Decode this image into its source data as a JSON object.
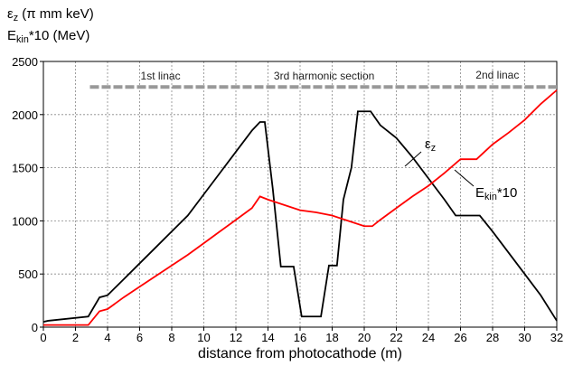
{
  "chart_data": {
    "type": "line",
    "y_label_lines": [
      [
        "ε",
        "z",
        " (π mm keV)"
      ],
      [
        "E",
        "kin",
        "*10 (MeV)"
      ]
    ],
    "x_label": "distance from photocathode (m)",
    "annotations": [
      "1st linac",
      "3rd harmonic section",
      "2nd linac"
    ],
    "xlim": [
      0,
      32
    ],
    "ylim": [
      0,
      2500
    ],
    "xticks": [
      0,
      2,
      4,
      6,
      8,
      10,
      12,
      14,
      16,
      18,
      20,
      22,
      24,
      26,
      28,
      30,
      32
    ],
    "yticks": [
      0,
      500,
      1000,
      1500,
      2000,
      2500
    ],
    "grid": true,
    "cavity_row": {
      "y": 2260,
      "x": [
        2.9,
        32
      ],
      "color": "#999999"
    },
    "series": [
      {
        "name_parts": [
          "ε",
          "z"
        ],
        "color": "#000000",
        "x": [
          0,
          0.3,
          2.8,
          3.5,
          4,
          5,
          6,
          7,
          8,
          9,
          10,
          11,
          12,
          13,
          13.5,
          13.8,
          14.3,
          14.8,
          15.6,
          16.1,
          17.3,
          17.8,
          18.3,
          18.7,
          19.2,
          19.6,
          20.4,
          21,
          22,
          23,
          24,
          25,
          25.7,
          27.2,
          28,
          29,
          30,
          31,
          32
        ],
        "values": [
          50,
          60,
          100,
          280,
          300,
          450,
          600,
          750,
          900,
          1050,
          1250,
          1450,
          1650,
          1850,
          1930,
          1930,
          1300,
          570,
          570,
          100,
          100,
          580,
          580,
          1200,
          1500,
          2030,
          2030,
          1900,
          1780,
          1600,
          1400,
          1200,
          1050,
          1050,
          900,
          700,
          500,
          300,
          60
        ]
      },
      {
        "name_parts": [
          "E",
          "kin",
          "*10"
        ],
        "color": "#ff0000",
        "x": [
          0,
          2.8,
          3.5,
          4,
          5,
          6,
          7,
          8,
          9,
          10,
          11,
          12,
          13,
          13.5,
          14,
          15,
          16,
          17,
          18,
          19,
          20,
          20.5,
          21,
          22,
          23,
          24,
          25,
          26,
          27,
          28,
          29,
          30,
          31,
          32
        ],
        "values": [
          20,
          20,
          150,
          170,
          280,
          380,
          480,
          580,
          680,
          790,
          900,
          1010,
          1120,
          1230,
          1200,
          1150,
          1100,
          1080,
          1050,
          1000,
          950,
          950,
          1010,
          1120,
          1230,
          1330,
          1450,
          1580,
          1580,
          1720,
          1830,
          1950,
          2100,
          2230
        ]
      }
    ]
  }
}
